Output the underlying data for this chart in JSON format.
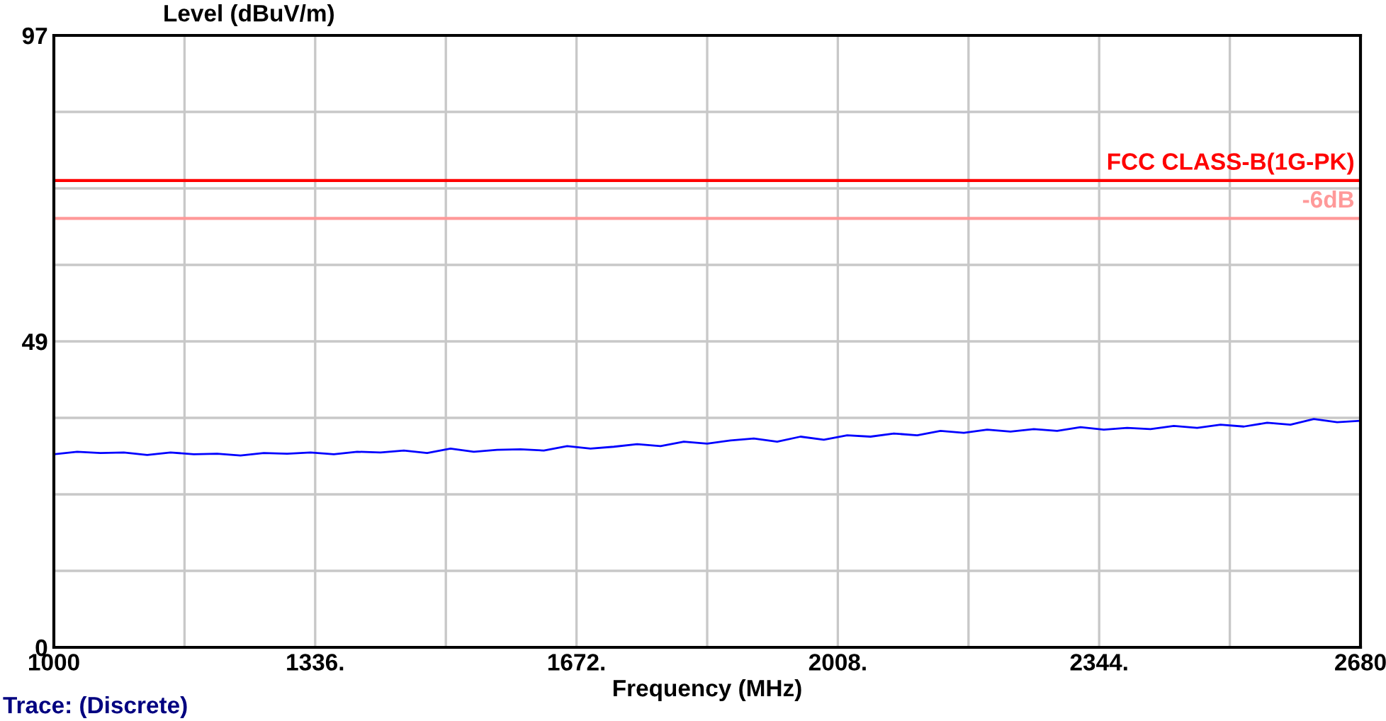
{
  "chart_data": {
    "type": "line",
    "xlabel": "Frequency (MHz)",
    "ylabel": "Level (dBuV/m)",
    "annotations": [
      "Trace: (Discrete)"
    ],
    "x": [
      1000,
      1030,
      1060,
      1090,
      1120,
      1150,
      1180,
      1210,
      1240,
      1270,
      1300,
      1330,
      1360,
      1390,
      1420,
      1450,
      1480,
      1510,
      1540,
      1570,
      1600,
      1630,
      1660,
      1690,
      1720,
      1750,
      1780,
      1810,
      1840,
      1870,
      1900,
      1930,
      1960,
      1990,
      2020,
      2050,
      2080,
      2110,
      2140,
      2170,
      2200,
      2230,
      2260,
      2290,
      2320,
      2350,
      2380,
      2410,
      2440,
      2470,
      2500,
      2530,
      2560,
      2590,
      2620,
      2650,
      2680
    ],
    "series": [
      {
        "color": "#0000ff",
        "values": [
          30.6,
          31.0,
          30.8,
          30.9,
          30.5,
          30.9,
          30.6,
          30.7,
          30.4,
          30.8,
          30.7,
          30.9,
          30.6,
          31.0,
          30.9,
          31.2,
          30.8,
          31.5,
          31.0,
          31.3,
          31.4,
          31.2,
          31.9,
          31.5,
          31.8,
          32.2,
          31.9,
          32.6,
          32.3,
          32.8,
          33.1,
          32.6,
          33.4,
          32.9,
          33.6,
          33.4,
          33.9,
          33.6,
          34.3,
          34.0,
          34.5,
          34.2,
          34.6,
          34.3,
          34.9,
          34.5,
          34.8,
          34.6,
          35.1,
          34.8,
          35.3,
          35.0,
          35.6,
          35.3,
          36.2,
          35.7,
          35.9
        ]
      }
    ],
    "xlim": [
      1000,
      2680
    ],
    "xticks": [
      1000,
      {
        "value": 1168,
        "label": null
      },
      {
        "value": 1336,
        "label": "1336."
      },
      {
        "value": 1504,
        "label": null
      },
      {
        "value": 1672,
        "label": "1672."
      },
      {
        "value": 1840,
        "label": null
      },
      {
        "value": 2008,
        "label": "2008."
      },
      {
        "value": 2176,
        "label": null
      },
      {
        "value": 2344,
        "label": "2344."
      },
      {
        "value": 2512,
        "label": null
      },
      2680
    ],
    "ylim": [
      0,
      97
    ],
    "yticks": [
      0,
      {
        "value": 12.125,
        "label": null
      },
      {
        "value": 24.25,
        "label": null
      },
      {
        "value": 36.375,
        "label": null
      },
      {
        "value": 48.5,
        "label": "49"
      },
      {
        "value": 60.625,
        "label": null
      },
      {
        "value": 72.75,
        "label": null
      },
      {
        "value": 84.875,
        "label": null
      },
      97
    ],
    "ref_lines": [
      {
        "axis": "y",
        "value": 74,
        "label": "FCC CLASS-B(1G-PK)",
        "color": "#ff0000"
      },
      {
        "axis": "y",
        "value": 68,
        "label": "-6dB",
        "color": "#ff9999"
      }
    ],
    "grid": true,
    "legend": false
  }
}
